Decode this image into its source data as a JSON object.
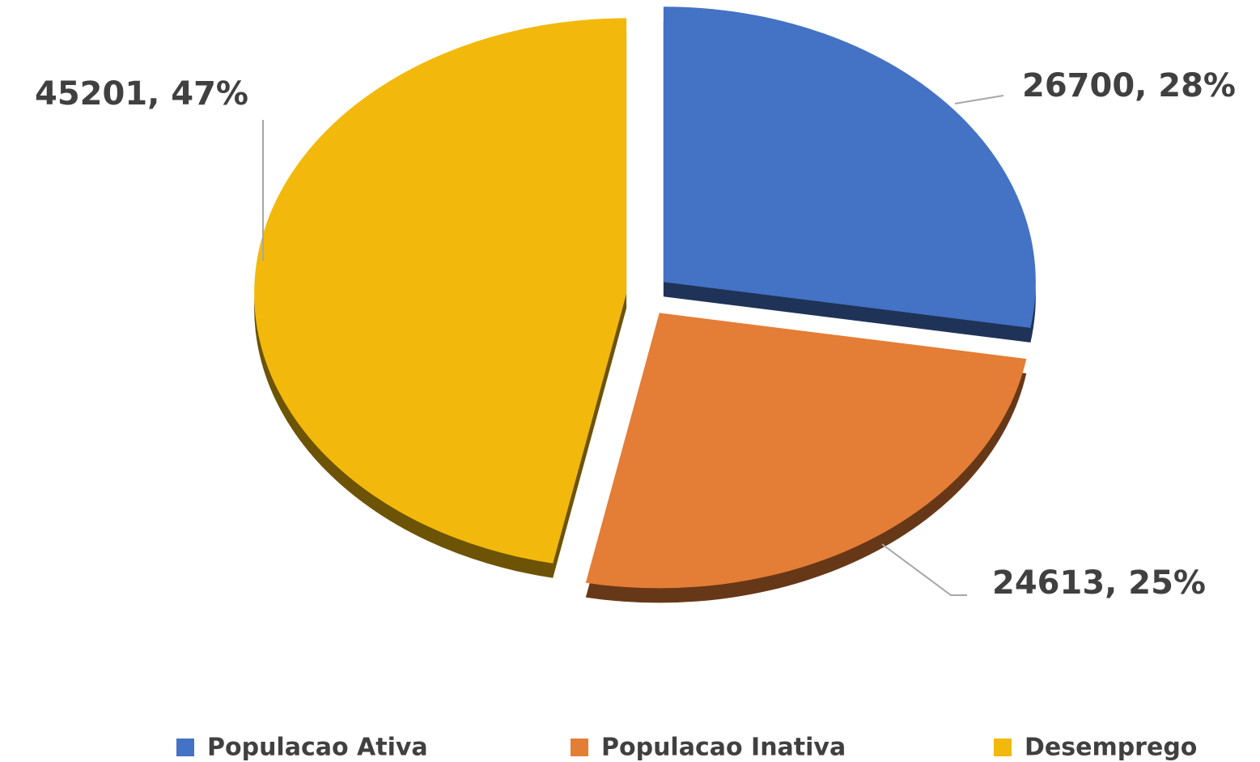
{
  "chart_data": {
    "type": "pie",
    "categories": [
      "Populacao Ativa",
      "Populacao Inativa",
      "Desemprego"
    ],
    "values": [
      26700,
      24613,
      45201
    ],
    "value_labels": [
      "26700, 28%",
      "24613, 25%",
      "45201, 47%"
    ],
    "colors": [
      "#4472c4",
      "#e47d36",
      "#f2b90c"
    ],
    "legend": "bottom"
  }
}
